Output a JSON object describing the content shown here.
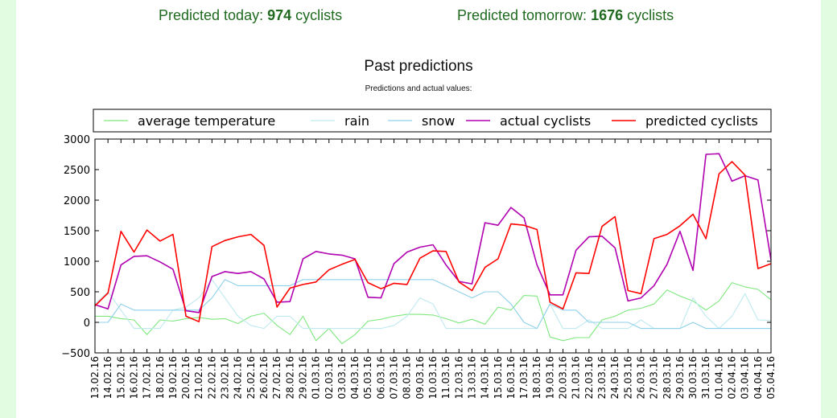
{
  "header": {
    "today_label": "Predicted today:",
    "today_value": "974",
    "today_unit": "cyclists",
    "tomorrow_label": "Predicted tomorrow:",
    "tomorrow_value": "1676",
    "tomorrow_unit": "cyclists"
  },
  "chart_data": {
    "type": "line",
    "title": "Past predictions",
    "subtitle": "Predictions and actual values:",
    "ylim": [
      -500,
      3000
    ],
    "yticks": [
      -500,
      0,
      500,
      1000,
      1500,
      2000,
      2500,
      3000
    ],
    "grid": false,
    "legend_position": "top",
    "categories": [
      "13.02.16",
      "14.02.16",
      "15.02.16",
      "16.02.16",
      "17.02.16",
      "18.02.16",
      "19.02.16",
      "20.02.16",
      "21.02.16",
      "22.02.16",
      "23.02.16",
      "24.02.16",
      "25.02.16",
      "26.02.16",
      "27.02.16",
      "28.02.16",
      "29.02.16",
      "01.03.16",
      "02.03.16",
      "03.03.16",
      "04.03.16",
      "05.03.16",
      "06.03.16",
      "07.03.16",
      "08.03.16",
      "09.03.16",
      "10.03.16",
      "11.03.16",
      "12.03.16",
      "13.03.16",
      "14.03.16",
      "15.03.16",
      "16.03.16",
      "17.03.16",
      "18.03.16",
      "19.03.16",
      "20.03.16",
      "21.03.16",
      "22.03.16",
      "23.03.16",
      "24.03.16",
      "25.03.16",
      "26.03.16",
      "27.03.16",
      "28.03.16",
      "29.03.16",
      "30.03.16",
      "31.03.16",
      "01.04.16",
      "02.04.16",
      "03.04.16",
      "04.04.16",
      "05.04.16"
    ],
    "series": [
      {
        "name": "average temperature",
        "color": "#7fe87f",
        "values": [
          100,
          100,
          60,
          40,
          -200,
          40,
          20,
          60,
          80,
          50,
          60,
          -20,
          100,
          150,
          -50,
          -200,
          100,
          -300,
          -100,
          -350,
          -200,
          20,
          50,
          100,
          130,
          130,
          120,
          60,
          -10,
          50,
          -30,
          250,
          200,
          440,
          430,
          -240,
          -300,
          -250,
          -250,
          40,
          100,
          200,
          230,
          300,
          530,
          430,
          350,
          200,
          350,
          650,
          580,
          540,
          370
        ]
      },
      {
        "name": "rain",
        "color": "#bfe9ef",
        "values": [
          300,
          500,
          200,
          -100,
          -100,
          -100,
          200,
          250,
          400,
          700,
          400,
          100,
          -50,
          -100,
          100,
          100,
          -100,
          -100,
          -100,
          -100,
          -100,
          -100,
          -100,
          -50,
          100,
          400,
          300,
          -100,
          -100,
          -100,
          -100,
          -100,
          -100,
          -100,
          -100,
          300,
          -100,
          -100,
          40,
          -100,
          -100,
          -100,
          40,
          -100,
          -100,
          -100,
          400,
          100,
          -100,
          100,
          470,
          40,
          30
        ]
      },
      {
        "name": "snow",
        "color": "#8fd0ea",
        "values": [
          0,
          0,
          300,
          200,
          200,
          200,
          200,
          200,
          200,
          400,
          700,
          600,
          600,
          600,
          600,
          600,
          700,
          700,
          700,
          700,
          700,
          700,
          700,
          700,
          700,
          700,
          700,
          600,
          500,
          400,
          500,
          500,
          300,
          0,
          -100,
          300,
          200,
          200,
          0,
          0,
          0,
          0,
          -100,
          -100,
          -100,
          -100,
          0,
          -100,
          -100,
          -100,
          -100,
          -100,
          -100
        ]
      },
      {
        "name": "actual cyclists",
        "color": "#b000b0",
        "values": [
          290,
          220,
          940,
          1080,
          1090,
          990,
          870,
          190,
          160,
          750,
          830,
          800,
          830,
          710,
          330,
          340,
          1040,
          1160,
          1120,
          1100,
          1040,
          410,
          400,
          960,
          1150,
          1230,
          1270,
          940,
          670,
          630,
          1630,
          1590,
          1880,
          1710,
          940,
          450,
          450,
          1180,
          1400,
          1410,
          1220,
          350,
          400,
          600,
          950,
          1490,
          850,
          2750,
          2760,
          2310,
          2400,
          2330,
          1020
        ]
      },
      {
        "name": "predicted cyclists",
        "color": "#ff0000",
        "values": [
          270,
          480,
          1490,
          1150,
          1510,
          1330,
          1440,
          100,
          10,
          1240,
          1340,
          1400,
          1440,
          1260,
          250,
          560,
          620,
          660,
          860,
          950,
          1030,
          650,
          550,
          640,
          620,
          1050,
          1170,
          1160,
          660,
          520,
          900,
          1040,
          1610,
          1590,
          1520,
          330,
          220,
          810,
          800,
          1570,
          1730,
          520,
          470,
          1370,
          1440,
          1580,
          1770,
          1370,
          2430,
          2630,
          2410,
          880,
          960
        ]
      }
    ]
  }
}
